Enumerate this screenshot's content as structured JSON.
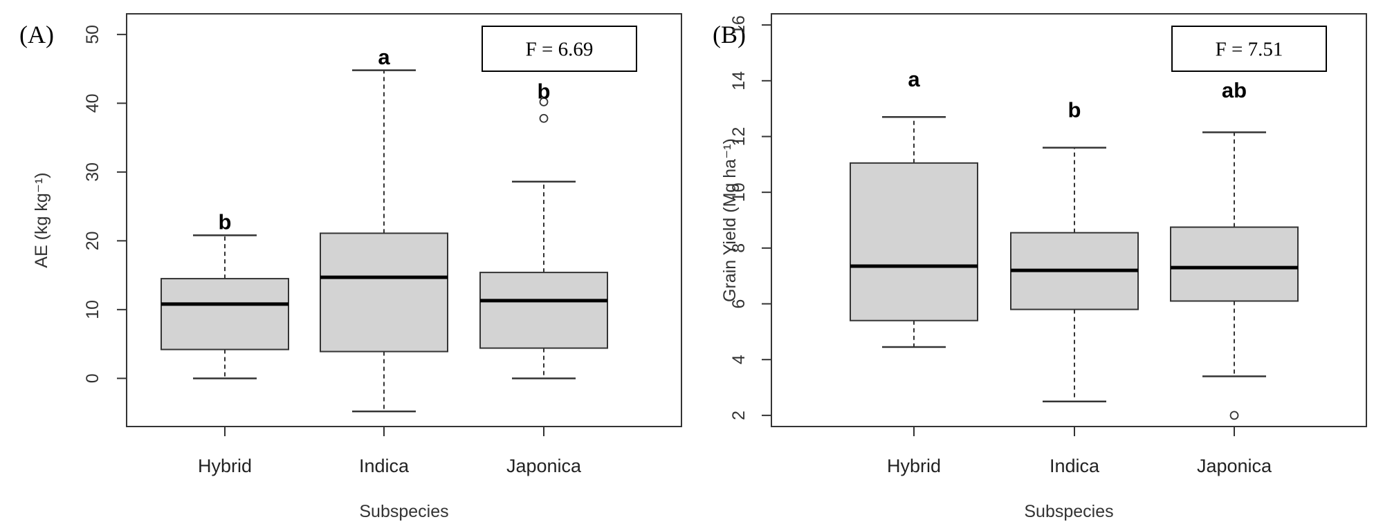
{
  "chart_data": [
    {
      "type": "box",
      "panel": "(A)",
      "ylabel": "AE (kg kg⁻¹)",
      "xlabel": "Subspecies",
      "ylim": [
        -7,
        53
      ],
      "yticks": [
        0,
        10,
        20,
        30,
        40,
        50
      ],
      "categories": [
        "Hybrid",
        "Indica",
        "Japonica"
      ],
      "boxes": [
        {
          "category": "Hybrid",
          "min": 0,
          "q1": 4.2,
          "median": 10.8,
          "q3": 14.5,
          "max": 20.8,
          "outliers": []
        },
        {
          "category": "Indica",
          "min": -4.8,
          "q1": 3.9,
          "median": 14.7,
          "q3": 21.1,
          "max": 44.8,
          "outliers": []
        },
        {
          "category": "Japonica",
          "min": 0,
          "q1": 4.4,
          "median": 11.3,
          "q3": 15.4,
          "max": 28.6,
          "outliers": [
            37.8,
            40.2
          ]
        }
      ],
      "letters": [
        {
          "category": "Hybrid",
          "text": "b",
          "y": 22.5
        },
        {
          "category": "Indica",
          "text": "a",
          "y": 46.5
        },
        {
          "category": "Japonica",
          "text": "b",
          "y": 41.5
        }
      ],
      "stat": "F = 6.69"
    },
    {
      "type": "box",
      "panel": "(B)",
      "ylabel": "Grain Yield (Mg ha⁻¹)",
      "xlabel": "Subspecies",
      "ylim": [
        1.6,
        16.4
      ],
      "yticks": [
        2,
        4,
        6,
        8,
        10,
        12,
        14,
        16
      ],
      "categories": [
        "Hybrid",
        "Indica",
        "Japonica"
      ],
      "boxes": [
        {
          "category": "Hybrid",
          "min": 4.45,
          "q1": 5.4,
          "median": 7.35,
          "q3": 11.05,
          "max": 12.7,
          "outliers": []
        },
        {
          "category": "Indica",
          "min": 2.5,
          "q1": 5.8,
          "median": 7.2,
          "q3": 8.55,
          "max": 11.6,
          "outliers": []
        },
        {
          "category": "Japonica",
          "min": 3.4,
          "q1": 6.1,
          "median": 7.3,
          "q3": 8.75,
          "max": 12.15,
          "outliers": [
            2.0
          ]
        }
      ],
      "letters": [
        {
          "category": "Hybrid",
          "text": "a",
          "y": 14.0
        },
        {
          "category": "Indica",
          "text": "b",
          "y": 12.9
        },
        {
          "category": "Japonica",
          "text": "ab",
          "y": 13.6
        }
      ],
      "stat": "F = 7.51"
    }
  ],
  "colors": {
    "box_fill": "#d3d3d3",
    "line": "#333333",
    "median": "#000000"
  }
}
